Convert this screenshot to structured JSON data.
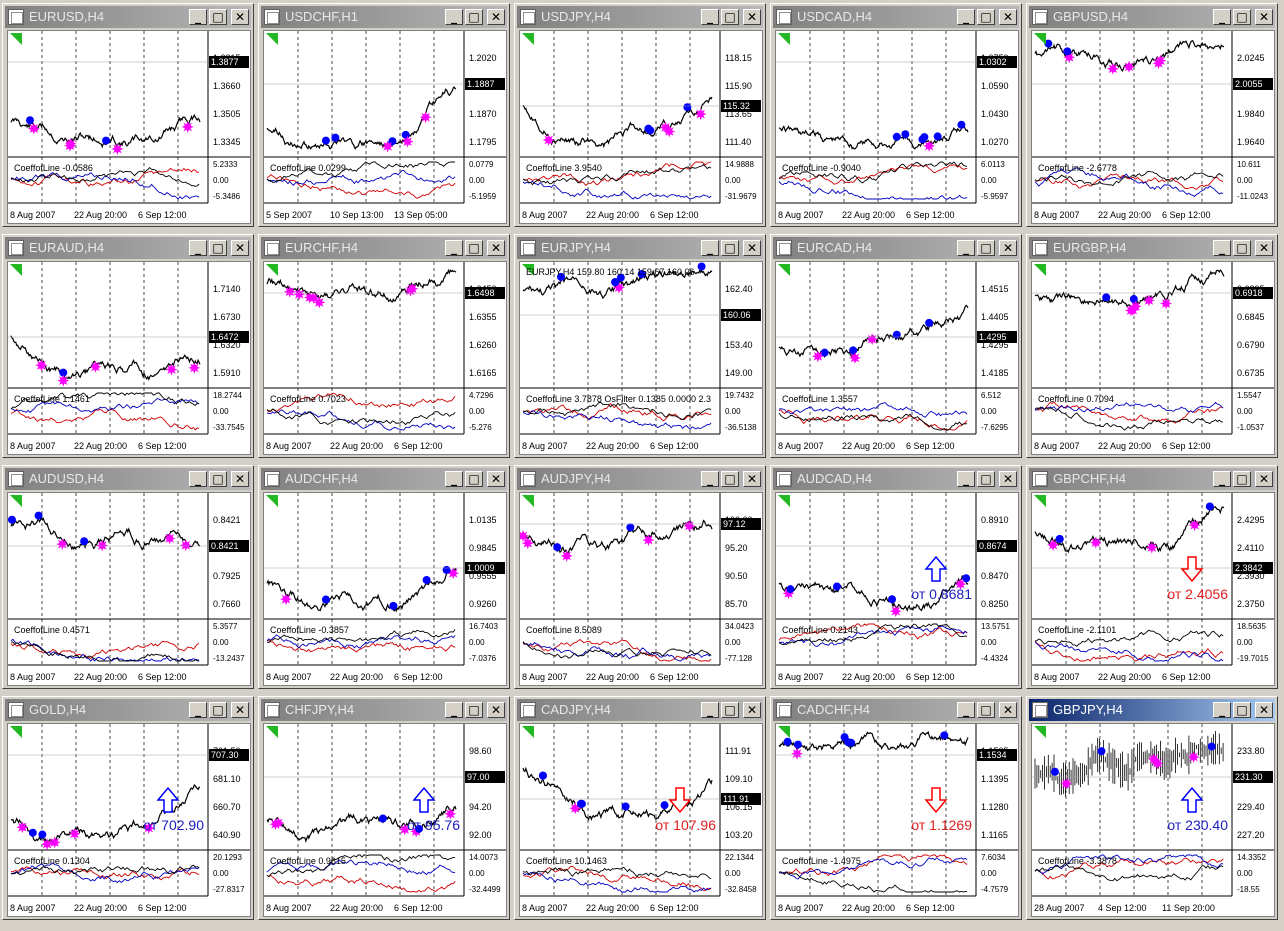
{
  "app": {
    "window_buttons": {
      "minimize": "_",
      "maximize": "□",
      "close": "✕"
    }
  },
  "colors": {
    "price_line": "#000000",
    "oscillator_a": "#d00000",
    "oscillator_b": "#0000c0",
    "oscillator_c": "#000000",
    "buy_dot": "#0000ff",
    "sell_star": "#ff00ff",
    "corner_marker": "#22b822",
    "arrow_up": "#0000ff",
    "arrow_down": "#ff0000",
    "active_titlebar": "#0a246a"
  },
  "icons": {
    "app_icon": "chart-window-icon",
    "dot": "circle-marker",
    "star": "magenta-star-marker",
    "flag": "green-corner-marker",
    "arrow_up": "hollow-up-arrow-icon",
    "arrow_down": "hollow-down-arrow-icon"
  },
  "charts": [
    {
      "title": "EURUSD,H4",
      "price_ticks": [
        "1.3815",
        "1.3660",
        "1.3505",
        "1.3345"
      ],
      "price_label": "1.3877",
      "osc_label": "CoeffofLine -0.0586",
      "osc_ticks": [
        "5.2333",
        "0.00",
        "-5.3486"
      ],
      "time_labels": [
        "8 Aug 2007",
        "22 Aug 20:00",
        "6 Sep 12:00"
      ],
      "active": false,
      "seed": 11,
      "note": "",
      "arrow": ""
    },
    {
      "title": "USDCHF,H1",
      "price_ticks": [
        "1.2020",
        "1.1945",
        "1.1870",
        "1.1795"
      ],
      "price_label": "1.1887",
      "osc_label": "CoeffofLine 0.0299",
      "osc_ticks": [
        "0.0779",
        "0.00",
        "-5.1959"
      ],
      "time_labels": [
        "5 Sep 2007",
        "10 Sep 13:00",
        "13 Sep 05:00"
      ],
      "active": false,
      "seed": 23,
      "note": "",
      "arrow": ""
    },
    {
      "title": "USDJPY,H4",
      "price_ticks": [
        "118.15",
        "115.90",
        "113.65",
        "111.40"
      ],
      "price_label": "115.32",
      "osc_label": "CoeffofLine 3.9540",
      "osc_ticks": [
        "14.9888",
        "0.00",
        "-31.9679"
      ],
      "time_labels": [
        "8 Aug 2007",
        "22 Aug 20:00",
        "6 Sep 12:00"
      ],
      "active": false,
      "seed": 37,
      "note": "",
      "arrow": ""
    },
    {
      "title": "USDCAD,H4",
      "price_ticks": [
        "1.0750",
        "1.0590",
        "1.0430",
        "1.0270"
      ],
      "price_label": "1.0302",
      "osc_label": "CoeffofLine -0.9040",
      "osc_ticks": [
        "6.0113",
        "0.00",
        "-5.9597"
      ],
      "time_labels": [
        "8 Aug 2007",
        "22 Aug 20:00",
        "6 Sep 12:00"
      ],
      "active": false,
      "seed": 41,
      "note": "",
      "arrow": ""
    },
    {
      "title": "GBPUSD,H4",
      "price_ticks": [
        "2.0245",
        "2.0055",
        "1.9840",
        "1.9640"
      ],
      "price_label": "2.0055",
      "osc_label": "CoeffofLine -2.6778",
      "osc_ticks": [
        "10.611",
        "0.00",
        "-11.0243"
      ],
      "time_labels": [
        "8 Aug 2007",
        "22 Aug 20:00",
        "6 Sep 12:00"
      ],
      "active": false,
      "seed": 53,
      "note": "",
      "arrow": ""
    },
    {
      "title": "EURAUD,H4",
      "price_ticks": [
        "1.7140",
        "1.6730",
        "1.6320",
        "1.5910"
      ],
      "price_label": "1.6472",
      "osc_label": "CoeffofLine 1.1461",
      "osc_ticks": [
        "18.2744",
        "0.00",
        "-33.7545"
      ],
      "time_labels": [
        "8 Aug 2007",
        "22 Aug 20:00",
        "6 Sep 12:00"
      ],
      "active": false,
      "seed": 61,
      "note": "",
      "arrow": ""
    },
    {
      "title": "EURCHF,H4",
      "price_ticks": [
        "1.6450",
        "1.6355",
        "1.6260",
        "1.6165"
      ],
      "price_label": "1.6498",
      "osc_label": "CoeffofLine 0.7023",
      "osc_ticks": [
        "4.7296",
        "0.00",
        "-5.276"
      ],
      "time_labels": [
        "8 Aug 2007",
        "22 Aug 20:00",
        "6 Sep 12:00"
      ],
      "active": false,
      "seed": 71,
      "note": "",
      "arrow": ""
    },
    {
      "title": "EURJPY,H4",
      "price_ticks": [
        "162.40",
        "157.90",
        "153.40",
        "149.00"
      ],
      "price_label": "160.06",
      "osc_label": "CoeffofLine 3.7878  OsFilter 0.1385 0.0000 2.3",
      "osc_ticks": [
        "19.7432",
        "0.00",
        "-36.5138"
      ],
      "time_labels": [
        "8 Aug 2007",
        "22 Aug 20:00",
        "6 Sep 12:00"
      ],
      "active": false,
      "seed": 83,
      "note": "",
      "arrow": "",
      "ohlc": "EURJPY,H4  159.80 160.14 159.67 160.06"
    },
    {
      "title": "EURCAD,H4",
      "price_ticks": [
        "1.4515",
        "1.4405",
        "1.4295",
        "1.4185"
      ],
      "price_label": "1.4295",
      "osc_label": "CoeffofLine 1.3557",
      "osc_ticks": [
        "6.512",
        "0.00",
        "-7.6295"
      ],
      "time_labels": [
        "8 Aug 2007",
        "22 Aug 20:00",
        "6 Sep 12:00"
      ],
      "active": false,
      "seed": 97,
      "note": "",
      "arrow": ""
    },
    {
      "title": "EURGBP,H4",
      "price_ticks": [
        "0.6895",
        "0.6845",
        "0.6790",
        "0.6735"
      ],
      "price_label": "0.6918",
      "osc_label": "CoeffofLine 0.7094",
      "osc_ticks": [
        "1.5547",
        "0.00",
        "-1.0537"
      ],
      "time_labels": [
        "8 Aug 2007",
        "22 Aug 20:00",
        "6 Sep 12:00"
      ],
      "active": false,
      "seed": 101,
      "note": "",
      "arrow": ""
    },
    {
      "title": "AUDUSD,H4",
      "price_ticks": [
        "0.8421",
        "0.8195",
        "0.7925",
        "0.7660"
      ],
      "price_label": "0.8421",
      "osc_label": "CoeffofLine 0.4571",
      "osc_ticks": [
        "5.3577",
        "0.00",
        "-13.2437"
      ],
      "time_labels": [
        "8 Aug 2007",
        "22 Aug 20:00",
        "6 Sep 12:00"
      ],
      "active": false,
      "seed": 113,
      "note": "",
      "arrow": ""
    },
    {
      "title": "AUDCHF,H4",
      "price_ticks": [
        "1.0135",
        "0.9845",
        "0.9555",
        "0.9260"
      ],
      "price_label": "1.0009",
      "osc_label": "CoeffofLine -0.3857",
      "osc_ticks": [
        "16.7403",
        "0.00",
        "-7.0376"
      ],
      "time_labels": [
        "8 Aug 2007",
        "22 Aug 20:00",
        "6 Sep 12:00"
      ],
      "active": false,
      "seed": 127,
      "note": "",
      "arrow": ""
    },
    {
      "title": "AUDJPY,H4",
      "price_ticks": [
        "100.00",
        "95.20",
        "90.50",
        "85.70"
      ],
      "price_label": "97.12",
      "osc_label": "CoeffofLine 8.5089",
      "osc_ticks": [
        "34.0423",
        "0.00",
        "-77.128"
      ],
      "time_labels": [
        "8 Aug 2007",
        "22 Aug 20:00",
        "6 Sep 12:00"
      ],
      "active": false,
      "seed": 131,
      "note": "",
      "arrow": ""
    },
    {
      "title": "AUDCAD,H4",
      "price_ticks": [
        "0.8910",
        "0.8674",
        "0.8470",
        "0.8250"
      ],
      "price_label": "0.8674",
      "osc_label": "CoeffofLine 0.2143",
      "osc_ticks": [
        "13.5751",
        "0.00",
        "-4.4324"
      ],
      "time_labels": [
        "8 Aug 2007",
        "22 Aug 20:00",
        "6 Sep 12:00"
      ],
      "active": false,
      "seed": 139,
      "note": "от 0.8681",
      "note_color": "#2020c0",
      "arrow": "up"
    },
    {
      "title": "GBPCHF,H4",
      "price_ticks": [
        "2.4295",
        "2.4110",
        "2.3930",
        "2.3750"
      ],
      "price_label": "2.3842",
      "osc_label": "CoeffofLine -2.1101",
      "osc_ticks": [
        "18.5635",
        "0.00",
        "-19.7015"
      ],
      "time_labels": [
        "8 Aug 2007",
        "22 Aug 20:00",
        "6 Sep 12:00"
      ],
      "active": false,
      "seed": 149,
      "note": "от 2.4056",
      "note_color": "#e02020",
      "arrow": "down"
    },
    {
      "title": "GOLD,H4",
      "price_ticks": [
        "701.50",
        "681.10",
        "660.70",
        "640.90"
      ],
      "price_label": "707.30",
      "osc_label": "CoeffofLine 0.1304",
      "osc_ticks": [
        "20.1293",
        "0.00",
        "-27.8317"
      ],
      "time_labels": [
        "8 Aug 2007",
        "22 Aug 20:00",
        "6 Sep 12:00"
      ],
      "active": false,
      "seed": 157,
      "note": "от 702.90",
      "note_color": "#2020c0",
      "arrow": "up"
    },
    {
      "title": "CHFJPY,H4",
      "price_ticks": [
        "98.60",
        "96.40",
        "94.20",
        "92.00"
      ],
      "price_label": "97.00",
      "osc_label": "CoeffofLine 0.9615",
      "osc_ticks": [
        "14.0073",
        "0.00",
        "-32.4499"
      ],
      "time_labels": [
        "8 Aug 2007",
        "22 Aug 20:00",
        "6 Sep 12:00"
      ],
      "active": false,
      "seed": 163,
      "note": "от 95.76",
      "note_color": "#2020c0",
      "arrow": "up"
    },
    {
      "title": "CADJPY,H4",
      "price_ticks": [
        "111.91",
        "109.10",
        "106.15",
        "103.20"
      ],
      "price_label": "111.91",
      "osc_label": "CoeffofLine 10.1463",
      "osc_ticks": [
        "22.1344",
        "0.00",
        "-32.8458"
      ],
      "time_labels": [
        "8 Aug 2007",
        "22 Aug 20:00",
        "6 Sep 12:00"
      ],
      "active": false,
      "seed": 173,
      "note": "от 107.96",
      "note_color": "#e02020",
      "arrow": "down"
    },
    {
      "title": "CADCHF,H4",
      "price_ticks": [
        "1.1505",
        "1.1395",
        "1.1280",
        "1.1165"
      ],
      "price_label": "1.1534",
      "osc_label": "CoeffofLine -1.4975",
      "osc_ticks": [
        "7.6034",
        "0.00",
        "-4.7579"
      ],
      "time_labels": [
        "8 Aug 2007",
        "22 Aug 20:00",
        "6 Sep 12:00"
      ],
      "active": false,
      "seed": 181,
      "note": "от 1.1269",
      "note_color": "#e02020",
      "arrow": "down"
    },
    {
      "title": "GBPJPY,H4",
      "price_ticks": [
        "233.80",
        "231.50",
        "229.40",
        "227.20"
      ],
      "price_label": "231.30",
      "osc_label": "CoeffofLine -3.3878",
      "osc_ticks": [
        "14.3352",
        "0.00",
        "-18.55"
      ],
      "time_labels": [
        "28 Aug 2007",
        "4 Sep 12:00",
        "11 Sep 20:00"
      ],
      "active": true,
      "seed": 191,
      "note": "от 230.40",
      "note_color": "#2020c0",
      "arrow": "up",
      "bars": true
    }
  ]
}
